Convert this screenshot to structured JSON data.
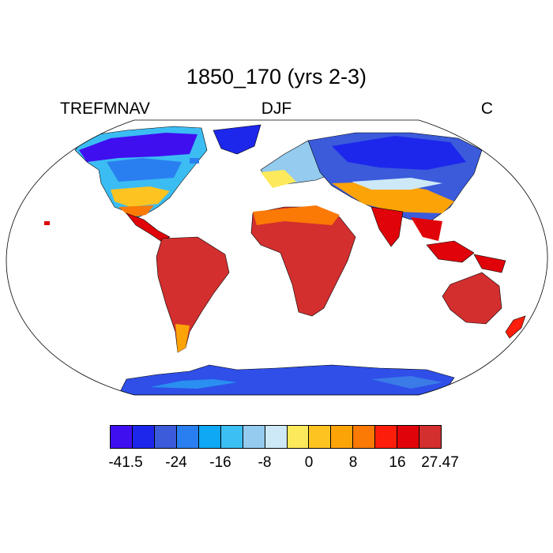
{
  "title": "1850_170 (yrs 2-3)",
  "left_label": "TREFMNAV",
  "center_label": "DJF",
  "right_label": "C",
  "colorbar": {
    "colors": [
      "#3f0ff0",
      "#1d27ec",
      "#3b5bdb",
      "#2a7ff0",
      "#0ea8f5",
      "#3cbff3",
      "#94cbef",
      "#cde9f7",
      "#fdea5c",
      "#fdc321",
      "#fca308",
      "#fb7905",
      "#fc1e0b",
      "#e0040a",
      "#d32f2f"
    ],
    "labels": [
      "-41.5",
      "-24",
      "-16",
      "-8",
      "0",
      "8",
      "16",
      "27.47"
    ],
    "label_slots": [
      0,
      3,
      5,
      7,
      9,
      11,
      13,
      15
    ]
  }
}
